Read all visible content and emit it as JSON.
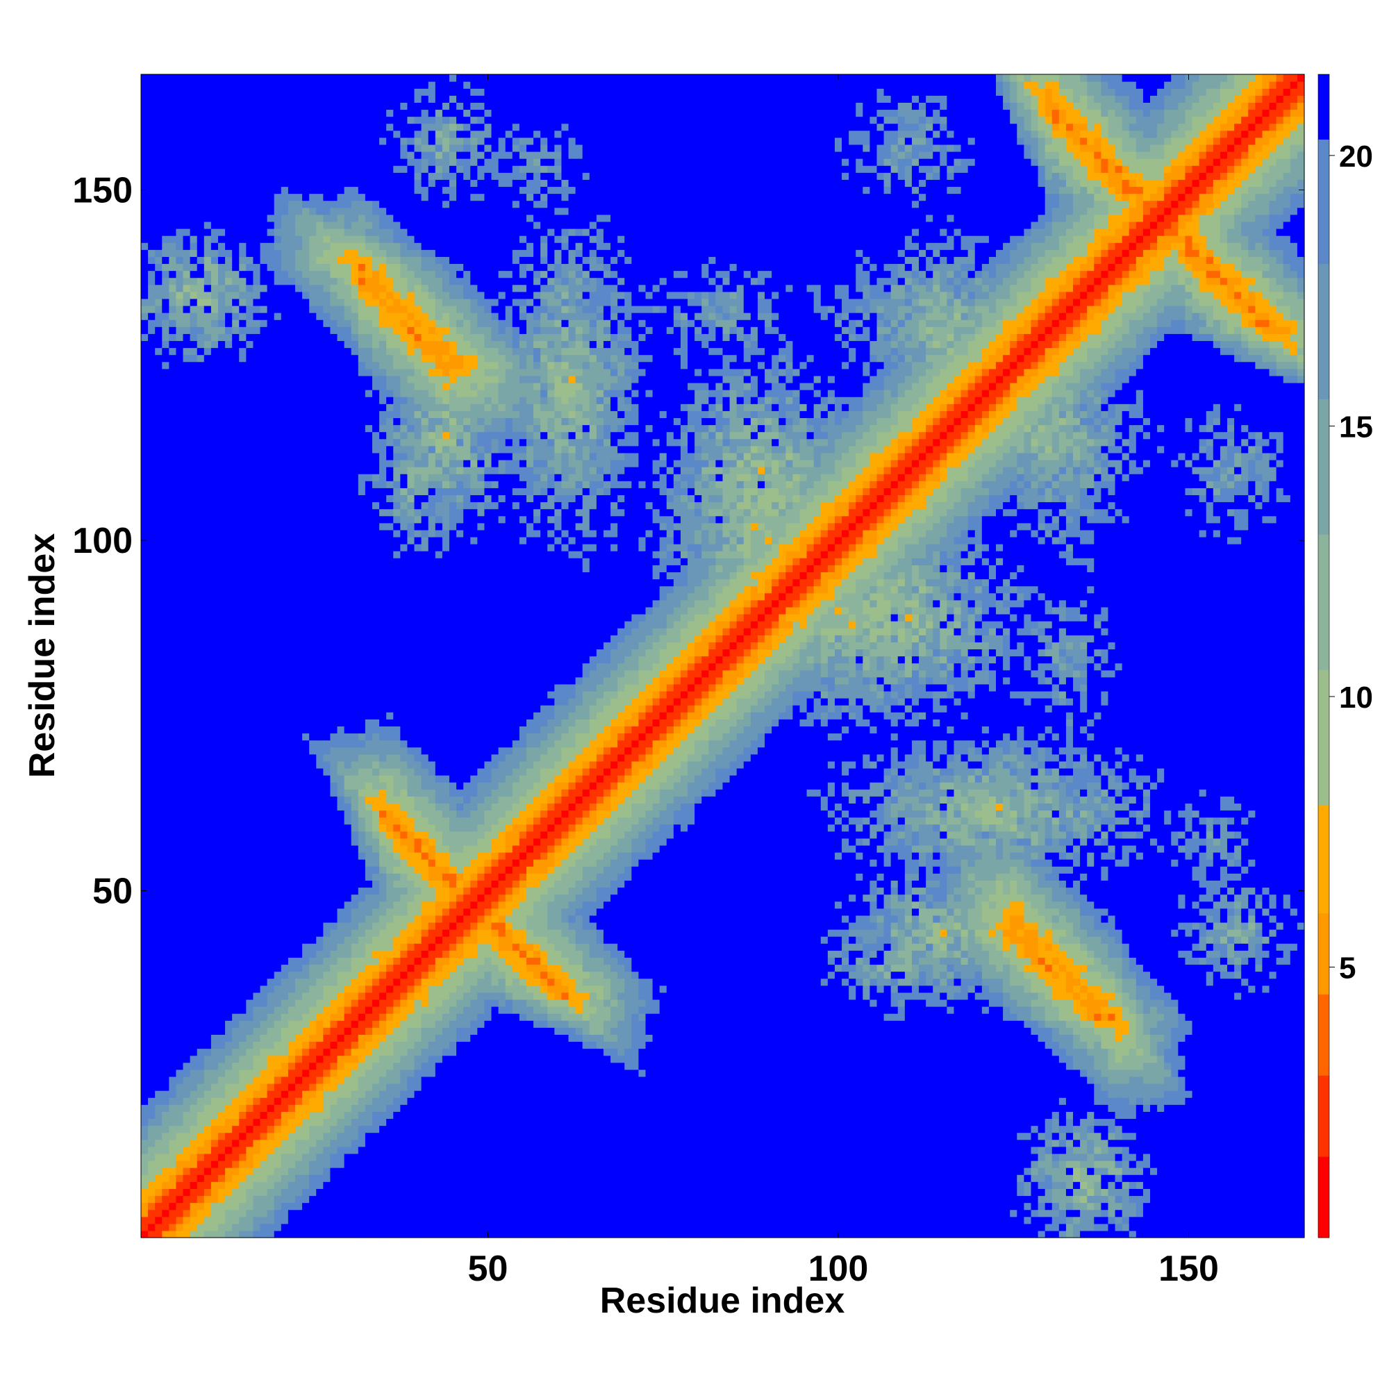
{
  "chart_data": {
    "type": "heatmap",
    "title": "",
    "xlabel": "Residue index",
    "ylabel": "Residue index",
    "n_residues": 166,
    "xlim": [
      1,
      166
    ],
    "ylim": [
      1,
      166
    ],
    "x_ticks": [
      50,
      100,
      150
    ],
    "y_ticks": [
      50,
      100,
      150
    ],
    "colorbar": {
      "ticks": [
        5,
        10,
        15,
        20
      ],
      "range": [
        0,
        21.5
      ],
      "colors": [
        "#ff0000",
        "#ff3300",
        "#ff6600",
        "#ff9900",
        "#ffaa00",
        "#9cbd8c",
        "#8cb49c",
        "#7aa6a8",
        "#6a96b8",
        "#5a88c8",
        "#0000ff"
      ],
      "boundaries": [
        0,
        1.5,
        3,
        4.5,
        6,
        8,
        10.5,
        13,
        15.5,
        18,
        20.3,
        21.5
      ]
    },
    "value_meaning": "pairwise residue distance; small values red, large values blue",
    "structure": {
      "main_diagonal": "distance ~0 along i=j with broad green band (width ~10 residues)",
      "anti_diagonal_contacts": [
        {
          "i": [
            36,
            48
          ],
          "j": [
            48,
            60
          ],
          "min_value": 3
        },
        {
          "i": [
            32,
            44
          ],
          "j": [
            124,
            138
          ],
          "min_value": 4
        },
        {
          "i": [
            125,
            140
          ],
          "j": [
            32,
            45
          ],
          "min_value": 4
        },
        {
          "i": [
            130,
            146
          ],
          "j": [
            146,
            162
          ],
          "min_value": 3
        }
      ],
      "patches": [
        {
          "x": [
            80,
            100
          ],
          "y": [
            90,
            112
          ],
          "min_value": 6
        },
        {
          "x": [
            96,
            120
          ],
          "y": [
            80,
            98
          ],
          "min_value": 6
        },
        {
          "x": [
            55,
            68
          ],
          "y": [
            110,
            132
          ],
          "min_value": 8
        },
        {
          "x": [
            118,
            140
          ],
          "y": [
            108,
            122
          ],
          "min_value": 8
        },
        {
          "x": [
            105,
            140
          ],
          "y": [
            55,
            68
          ],
          "min_value": 7
        },
        {
          "x": [
            105,
            125
          ],
          "y": [
            38,
            50
          ],
          "min_value": 7
        },
        {
          "x": [
            35,
            45
          ],
          "y": [
            100,
            118
          ],
          "min_value": 9
        },
        {
          "x": [
            60,
            80
          ],
          "y": [
            62,
            80
          ],
          "min_value": 9
        },
        {
          "x": [
            70,
            95
          ],
          "y": [
            125,
            140
          ],
          "min_value": 12
        },
        {
          "x": [
            100,
            130
          ],
          "y": [
            125,
            140
          ],
          "min_value": 9
        },
        {
          "x": [
            50,
            65
          ],
          "y": [
            145,
            162
          ],
          "min_value": 13
        },
        {
          "x": [
            100,
            120
          ],
          "y": [
            148,
            162
          ],
          "min_value": 12
        },
        {
          "x": [
            150,
            164
          ],
          "y": [
            38,
            50
          ],
          "min_value": 10
        },
        {
          "x": [
            155,
            164
          ],
          "y": [
            100,
            120
          ],
          "min_value": 13
        },
        {
          "x": [
            130,
            140
          ],
          "y": [
            3,
            15
          ],
          "min_value": 6
        }
      ]
    }
  }
}
